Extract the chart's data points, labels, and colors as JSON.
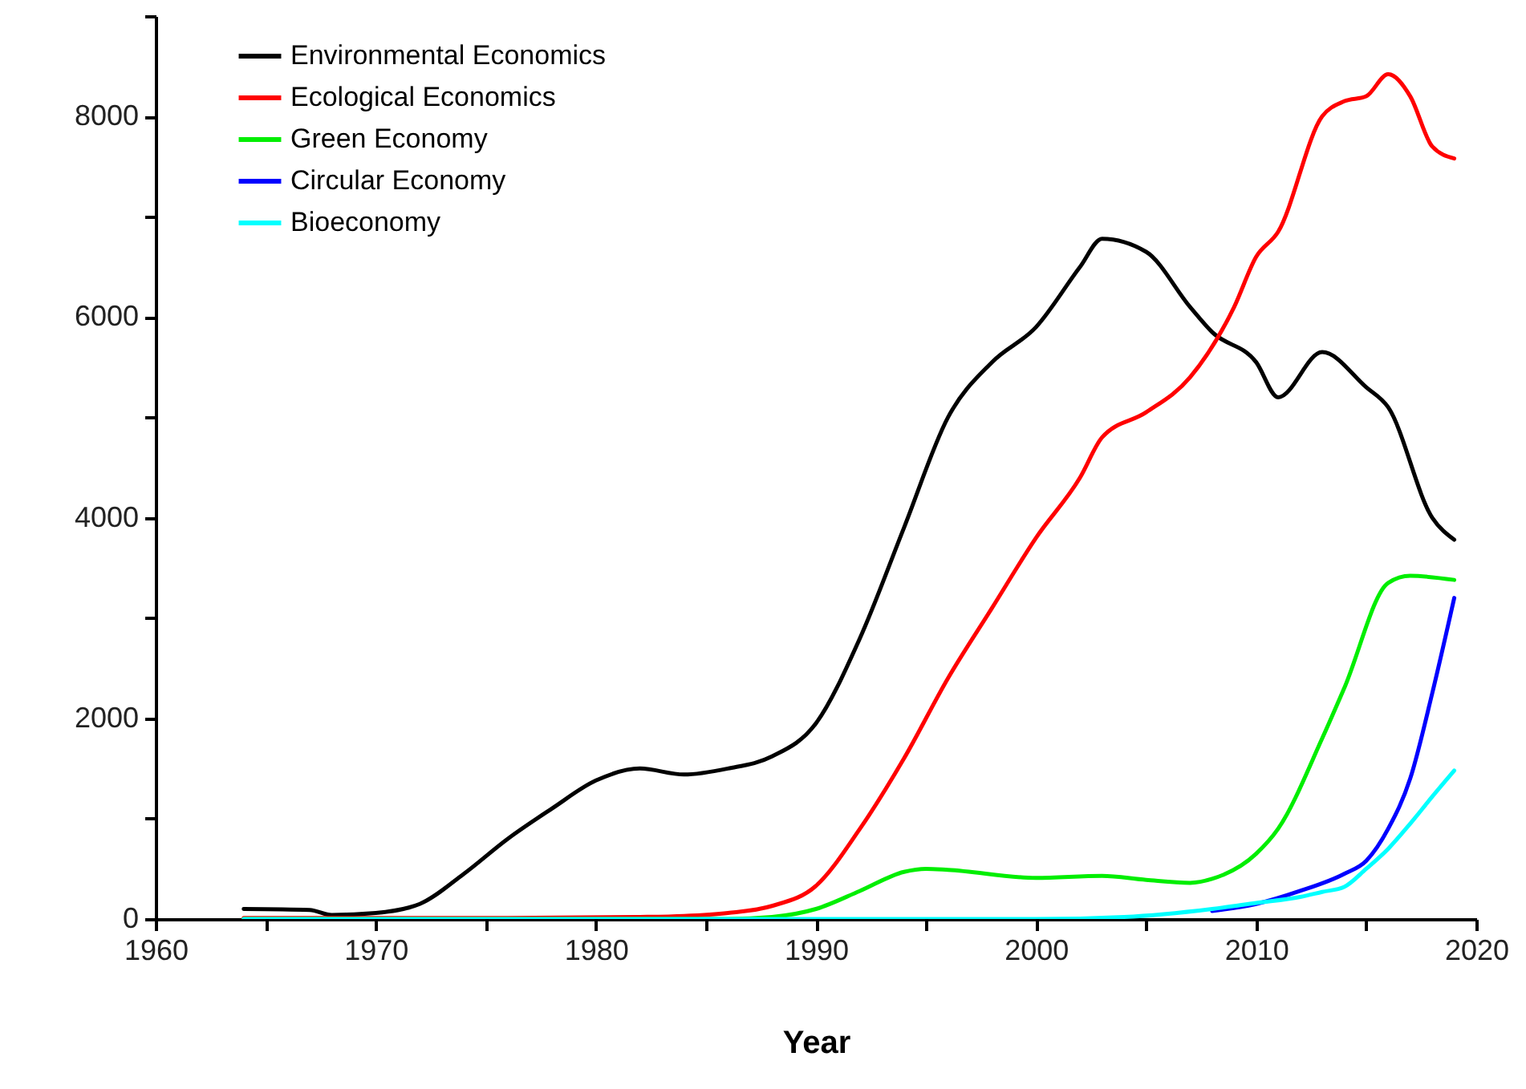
{
  "chart_data": {
    "type": "line",
    "xlabel": "Year",
    "xlim": [
      1960,
      2020
    ],
    "ylim": [
      0,
      9000
    ],
    "xticks": [
      1960,
      {
        "value": 1965,
        "label": null
      },
      1970,
      {
        "value": 1975,
        "label": null
      },
      1980,
      {
        "value": 1985,
        "label": null
      },
      1990,
      {
        "value": 1995,
        "label": null
      },
      2000,
      {
        "value": 2005,
        "label": null
      },
      2010,
      {
        "value": 2015,
        "label": null
      },
      2020
    ],
    "yticks": [
      0,
      {
        "value": 1000,
        "label": null
      },
      2000,
      {
        "value": 3000,
        "label": null
      },
      4000,
      {
        "value": 5000,
        "label": null
      },
      6000,
      {
        "value": 7000,
        "label": null
      },
      8000,
      {
        "value": 9000,
        "label": null
      }
    ],
    "grid": false,
    "legend": "top left",
    "series": [
      {
        "name": "Environmental Economics",
        "color": "#000000",
        "x": [
          1964,
          1967,
          1968,
          1970,
          1972,
          1974,
          1976,
          1978,
          1980,
          1982,
          1984,
          1986,
          1988,
          1990,
          1992,
          1994,
          1996,
          1998,
          2000,
          2002,
          2003,
          2005,
          2007,
          2008,
          2010,
          2011,
          2013,
          2015,
          2016,
          2018,
          2019
        ],
        "values": [
          100,
          90,
          40,
          60,
          150,
          450,
          800,
          1100,
          1380,
          1500,
          1440,
          1500,
          1620,
          1950,
          2800,
          3900,
          5000,
          5550,
          5900,
          6500,
          6780,
          6650,
          6100,
          5850,
          5550,
          5200,
          5650,
          5300,
          5100,
          4000,
          3780
        ]
      },
      {
        "name": "Ecological Economics",
        "color": "#ff0000",
        "x": [
          1964,
          1970,
          1976,
          1982,
          1984,
          1986,
          1988,
          1990,
          1992,
          1994,
          1996,
          1998,
          2000,
          2002,
          2003,
          2005,
          2007,
          2009,
          2010,
          2011,
          2013,
          2014,
          2015,
          2016,
          2017,
          2018,
          2019
        ],
        "values": [
          10,
          10,
          10,
          20,
          30,
          60,
          130,
          330,
          900,
          1600,
          2400,
          3100,
          3800,
          4400,
          4800,
          5050,
          5400,
          6100,
          6600,
          6850,
          8000,
          8150,
          8200,
          8420,
          8200,
          7700,
          7580
        ]
      },
      {
        "name": "Green Economy",
        "color": "#00ee00",
        "x": [
          1964,
          1980,
          1986,
          1988,
          1990,
          1992,
          1994,
          1995,
          1996,
          2000,
          2003,
          2005,
          2007,
          2008,
          2010,
          2011,
          2013,
          2014,
          2016,
          2017,
          2019
        ],
        "values": [
          0,
          0,
          0,
          20,
          100,
          280,
          470,
          500,
          490,
          410,
          430,
          390,
          360,
          400,
          650,
          900,
          1800,
          2300,
          3350,
          3420,
          3380
        ]
      },
      {
        "name": "Circular Economy",
        "color": "#0000ff",
        "x": [
          2008,
          2010,
          2012,
          2014,
          2015,
          2016,
          2017,
          2018,
          2019
        ],
        "values": [
          80,
          150,
          280,
          450,
          580,
          900,
          1400,
          2250,
          3200
        ]
      },
      {
        "name": "Bioeconomy",
        "color": "#00ffff",
        "x": [
          1964,
          2000,
          2004,
          2008,
          2010,
          2012,
          2013,
          2014,
          2015,
          2016,
          2017,
          2018,
          2019
        ],
        "values": [
          0,
          0,
          20,
          100,
          160,
          220,
          270,
          320,
          500,
          700,
          950,
          1220,
          1480
        ]
      }
    ]
  }
}
